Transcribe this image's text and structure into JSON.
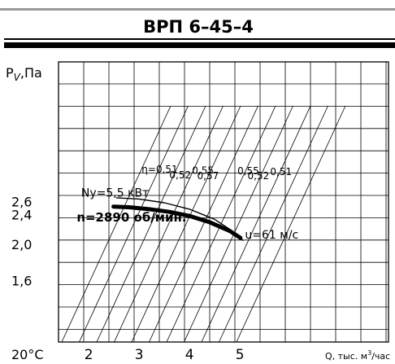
{
  "chart_data": {
    "type": "line",
    "title": "ВРП 6–45–4",
    "ylabel": "P",
    "ylabel_subscript": "V",
    "ylabel_unit": ",Па",
    "xlabel": "Q, тыс. м",
    "xlabel_sup": "3",
    "xlabel_tail": "/час",
    "temperature_label": "20°C",
    "x_ticks": [
      {
        "label": "2",
        "value": 2
      },
      {
        "label": "3",
        "value": 3
      },
      {
        "label": "4",
        "value": 4
      },
      {
        "label": "5",
        "value": 5
      }
    ],
    "y_ticks": [
      {
        "label": "2,6",
        "value": 2.6
      },
      {
        "label": "2,4",
        "value": 2.4
      },
      {
        "label": "2,0",
        "value": 2.0
      },
      {
        "label": "1,6",
        "value": 1.6
      }
    ],
    "y_scale": "log",
    "xlim": [
      1.4,
      6.0
    ],
    "grid": true,
    "efficiency_labels": [
      {
        "label": "η=0,51",
        "x": 3.05,
        "y": 3.1
      },
      {
        "label": "0,52",
        "x": 3.6,
        "y": 3.0
      },
      {
        "label": "0,55",
        "x": 4.05,
        "y": 3.08
      },
      {
        "label": "0,57",
        "x": 4.15,
        "y": 2.98
      },
      {
        "label": "0,55",
        "x": 4.95,
        "y": 3.07
      },
      {
        "label": "0,52",
        "x": 5.15,
        "y": 2.98
      },
      {
        "label": "0,51",
        "x": 5.6,
        "y": 3.06
      }
    ],
    "series": [
      {
        "name": "n=2890 об/мин.",
        "style": "thick",
        "x": [
          2.49,
          2.8,
          3.2,
          3.6,
          4.0,
          4.4,
          4.8,
          5.01
        ],
        "y": [
          2.52,
          2.51,
          2.48,
          2.44,
          2.38,
          2.29,
          2.17,
          2.08
        ]
      },
      {
        "name": "Ny=5,5 кВт",
        "style": "thin",
        "x": [
          2.55,
          3.0,
          3.5,
          4.0,
          4.5,
          4.85,
          5.06
        ],
        "y": [
          2.66,
          2.64,
          2.58,
          2.48,
          2.33,
          2.17,
          2.05
        ]
      }
    ],
    "annotations": [
      {
        "label": "Ny=5,5 кВт",
        "x": 1.85,
        "y": 2.68
      },
      {
        "label": "n=2890 об/мин.",
        "x": 1.76,
        "y": 2.3
      },
      {
        "label": "u=61 м/с",
        "x": 5.1,
        "y": 2.07
      }
    ]
  }
}
